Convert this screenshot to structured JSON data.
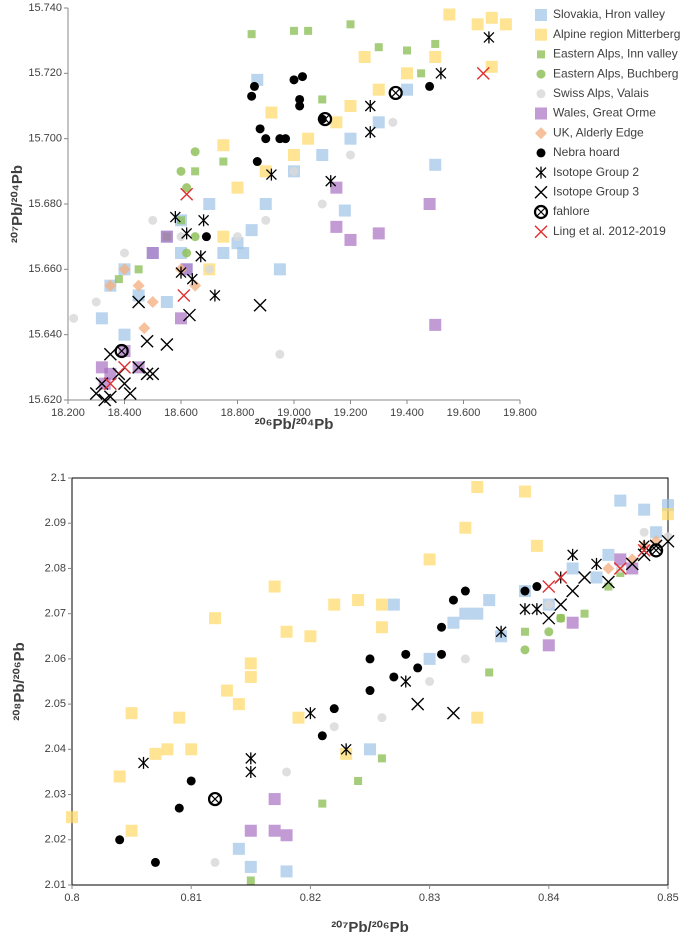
{
  "chart_data": [
    {
      "type": "scatter",
      "x_label": "²⁰⁶Pb/²⁰⁴Pb",
      "y_label": "²⁰⁷Pb/²⁰⁴Pb",
      "xlim": [
        18.2,
        19.8
      ],
      "ylim": [
        15.62,
        15.74
      ],
      "xticks": [
        {
          "value": 18.2,
          "label": "18.200"
        },
        {
          "value": 18.4,
          "label": "18.400"
        },
        {
          "value": 18.6,
          "label": "18.600"
        },
        {
          "value": 18.8,
          "label": "18.800"
        },
        {
          "value": 19.0,
          "label": "19.000"
        },
        {
          "value": 19.2,
          "label": "19.200"
        },
        {
          "value": 19.4,
          "label": "19.400"
        },
        {
          "value": 19.6,
          "label": "19.600"
        },
        {
          "value": 19.8,
          "label": "19.800"
        }
      ],
      "yticks": [
        {
          "value": 15.62,
          "label": "15.620"
        },
        {
          "value": 15.64,
          "label": "15.640"
        },
        {
          "value": 15.66,
          "label": "15.660"
        },
        {
          "value": 15.68,
          "label": "15.680"
        },
        {
          "value": 15.7,
          "label": "15.700"
        },
        {
          "value": 15.72,
          "label": "15.720"
        },
        {
          "value": 15.74,
          "label": "15.740"
        }
      ],
      "grid": false,
      "frame": false,
      "legend": "right",
      "series": [
        {
          "name": "Slovakia, Hron valley",
          "color": "#9dc3e6",
          "marker": "square",
          "x": [
            18.32,
            18.35,
            18.4,
            18.45,
            18.5,
            18.55,
            18.6,
            18.62,
            18.7,
            18.75,
            18.8,
            18.82,
            18.85,
            18.9,
            18.95,
            19.0,
            19.1,
            19.2,
            19.3,
            19.4,
            19.5,
            18.6,
            18.55,
            18.4,
            18.87,
            19.18
          ],
          "y": [
            15.645,
            15.655,
            15.66,
            15.652,
            15.665,
            15.67,
            15.675,
            15.66,
            15.68,
            15.665,
            15.668,
            15.665,
            15.672,
            15.68,
            15.66,
            15.69,
            15.695,
            15.7,
            15.705,
            15.715,
            15.692,
            15.665,
            15.65,
            15.64,
            15.718,
            15.678
          ]
        },
        {
          "name": "Alpine region Mitterberg",
          "color": "#ffd966",
          "marker": "square",
          "x": [
            18.7,
            18.75,
            18.8,
            18.9,
            19.0,
            19.05,
            19.15,
            19.2,
            19.3,
            19.4,
            19.5,
            19.55,
            19.65,
            19.7,
            19.75,
            19.7,
            19.25,
            18.75,
            18.92
          ],
          "y": [
            15.66,
            15.67,
            15.685,
            15.69,
            15.695,
            15.7,
            15.705,
            15.71,
            15.715,
            15.72,
            15.725,
            15.738,
            15.735,
            15.737,
            15.735,
            15.722,
            15.725,
            15.698,
            15.708
          ]
        },
        {
          "name": "Eastern Alps, Inn valley",
          "color": "#8fc15a",
          "marker": "square-small",
          "x": [
            18.55,
            18.6,
            18.65,
            18.75,
            18.85,
            19.0,
            19.05,
            19.2,
            19.3,
            19.4,
            19.5,
            19.45,
            19.1,
            18.45,
            18.38
          ],
          "y": [
            15.67,
            15.675,
            15.69,
            15.693,
            15.732,
            15.733,
            15.733,
            15.735,
            15.728,
            15.727,
            15.729,
            15.72,
            15.712,
            15.66,
            15.657
          ]
        },
        {
          "name": "Eastern Alps, Buchberg",
          "color": "#8fc15a",
          "marker": "dot",
          "x": [
            18.6,
            18.62,
            18.65,
            18.65,
            18.62
          ],
          "y": [
            15.69,
            15.685,
            15.696,
            15.67,
            15.665
          ]
        },
        {
          "name": "Swiss Alps, Valais",
          "color": "#d9d9d9",
          "marker": "dot",
          "x": [
            18.22,
            18.3,
            18.4,
            18.5,
            18.6,
            18.8,
            18.9,
            18.95,
            19.1,
            19.2,
            19.35,
            19.0,
            18.7
          ],
          "y": [
            15.645,
            15.65,
            15.665,
            15.675,
            15.67,
            15.67,
            15.675,
            15.634,
            15.68,
            15.695,
            15.705,
            15.69,
            15.66
          ]
        },
        {
          "name": "Wales, Great Orme",
          "color": "#a86fc2",
          "marker": "square",
          "x": [
            18.32,
            18.33,
            18.35,
            18.4,
            18.45,
            18.5,
            18.55,
            18.6,
            18.62,
            19.15,
            19.2,
            19.3,
            19.48,
            19.5,
            19.15
          ],
          "y": [
            15.63,
            15.625,
            15.628,
            15.635,
            15.63,
            15.665,
            15.67,
            15.645,
            15.66,
            15.673,
            15.669,
            15.671,
            15.68,
            15.643,
            15.685
          ]
        },
        {
          "name": "UK, Alderly Edge",
          "color": "#f4b183",
          "marker": "diamond",
          "x": [
            18.35,
            18.4,
            18.45,
            18.47,
            18.5,
            18.6,
            18.65
          ],
          "y": [
            15.655,
            15.66,
            15.655,
            15.642,
            15.65,
            15.66,
            15.655
          ]
        },
        {
          "name": "Nebra hoard",
          "color": "#000000",
          "marker": "circle",
          "x": [
            18.85,
            18.86,
            18.88,
            18.9,
            18.95,
            18.97,
            19.0,
            19.03,
            19.02,
            19.02,
            19.1,
            19.48,
            18.87,
            18.69
          ],
          "y": [
            15.713,
            15.716,
            15.703,
            15.7,
            15.7,
            15.7,
            15.718,
            15.719,
            15.712,
            15.71,
            15.706,
            15.716,
            15.693,
            15.67
          ]
        },
        {
          "name": "Isotope Group 2",
          "color": "#000000",
          "marker": "asterisk",
          "x": [
            18.58,
            18.62,
            18.68,
            18.67,
            18.6,
            18.64,
            18.72,
            18.92,
            19.13,
            19.27,
            19.27,
            19.52,
            19.69
          ],
          "y": [
            15.676,
            15.671,
            15.675,
            15.664,
            15.659,
            15.657,
            15.652,
            15.689,
            15.687,
            15.71,
            15.702,
            15.72,
            15.731
          ]
        },
        {
          "name": "Isotope Group 3",
          "color": "#000000",
          "marker": "x",
          "x": [
            18.3,
            18.32,
            18.35,
            18.38,
            18.4,
            18.42,
            18.45,
            18.48,
            18.5,
            18.55,
            18.48,
            18.45,
            18.63,
            18.88,
            18.33,
            18.35
          ],
          "y": [
            15.622,
            15.625,
            15.634,
            15.628,
            15.625,
            15.622,
            15.63,
            15.628,
            15.628,
            15.637,
            15.638,
            15.65,
            15.646,
            15.649,
            15.62,
            15.621
          ]
        },
        {
          "name": "fahlore",
          "color": "#000000",
          "marker": "circle-x",
          "x": [
            18.39,
            19.11,
            19.36
          ],
          "y": [
            15.635,
            15.706,
            15.714
          ]
        },
        {
          "name": "Ling et al. 2012-2019",
          "color": "#e03030",
          "marker": "x",
          "x": [
            18.35,
            18.4,
            18.62,
            18.61,
            19.67
          ],
          "y": [
            15.625,
            15.63,
            15.683,
            15.652,
            15.72
          ]
        }
      ]
    },
    {
      "type": "scatter",
      "x_label": "²⁰⁷Pb/²⁰⁶Pb",
      "y_label": "²⁰⁸Pb/²⁰⁶Pb",
      "xlim": [
        0.8,
        0.85
      ],
      "ylim": [
        2.01,
        2.1
      ],
      "xticks": [
        0.8,
        0.81,
        0.82,
        0.83,
        0.84,
        0.85
      ],
      "yticks": [
        2.01,
        2.02,
        2.03,
        2.04,
        2.05,
        2.06,
        2.07,
        2.08,
        2.09,
        2.1
      ],
      "grid": false,
      "frame": true,
      "series": [
        {
          "color": "#9dc3e6",
          "marker": "square",
          "x": [
            0.814,
            0.815,
            0.818,
            0.825,
            0.83,
            0.833,
            0.835,
            0.836,
            0.838,
            0.84,
            0.842,
            0.845,
            0.846,
            0.848,
            0.85,
            0.849,
            0.844,
            0.827,
            0.834,
            0.832
          ],
          "y": [
            2.018,
            2.014,
            2.013,
            2.04,
            2.06,
            2.07,
            2.073,
            2.065,
            2.075,
            2.072,
            2.08,
            2.083,
            2.095,
            2.093,
            2.094,
            2.088,
            2.078,
            2.072,
            2.07,
            2.068
          ]
        },
        {
          "color": "#ffd966",
          "marker": "square",
          "x": [
            0.8,
            0.804,
            0.805,
            0.805,
            0.807,
            0.808,
            0.809,
            0.81,
            0.812,
            0.813,
            0.814,
            0.815,
            0.815,
            0.817,
            0.818,
            0.82,
            0.822,
            0.824,
            0.826,
            0.826,
            0.83,
            0.833,
            0.834,
            0.838,
            0.834,
            0.839,
            0.85,
            0.819,
            0.823
          ],
          "y": [
            2.025,
            2.034,
            2.048,
            2.022,
            2.039,
            2.04,
            2.047,
            2.04,
            2.069,
            2.053,
            2.05,
            2.059,
            2.056,
            2.076,
            2.066,
            2.065,
            2.072,
            2.073,
            2.072,
            2.067,
            2.082,
            2.089,
            2.098,
            2.097,
            2.047,
            2.085,
            2.092,
            2.047,
            2.039
          ]
        },
        {
          "color": "#8fc15a",
          "marker": "square-small",
          "x": [
            0.815,
            0.821,
            0.824,
            0.826,
            0.835,
            0.838,
            0.841,
            0.843,
            0.845,
            0.846
          ],
          "y": [
            2.011,
            2.028,
            2.033,
            2.038,
            2.057,
            2.066,
            2.069,
            2.07,
            2.076,
            2.079
          ]
        },
        {
          "color": "#8fc15a",
          "marker": "dot",
          "x": [
            0.838,
            0.84,
            0.841
          ],
          "y": [
            2.062,
            2.066,
            2.069
          ]
        },
        {
          "color": "#d9d9d9",
          "marker": "dot",
          "x": [
            0.812,
            0.818,
            0.822,
            0.83,
            0.833,
            0.84,
            0.846,
            0.848,
            0.85,
            0.826
          ],
          "y": [
            2.015,
            2.035,
            2.045,
            2.055,
            2.06,
            2.072,
            2.08,
            2.088,
            2.087,
            2.047
          ]
        },
        {
          "color": "#a86fc2",
          "marker": "square",
          "x": [
            0.815,
            0.817,
            0.817,
            0.818,
            0.84,
            0.842,
            0.846,
            0.847
          ],
          "y": [
            2.022,
            2.029,
            2.022,
            2.021,
            2.063,
            2.068,
            2.082,
            2.08
          ]
        },
        {
          "color": "#f4b183",
          "marker": "diamond",
          "x": [
            0.845,
            0.847,
            0.848,
            0.849
          ],
          "y": [
            2.08,
            2.082,
            2.085,
            2.086
          ]
        },
        {
          "color": "#000000",
          "marker": "circle",
          "x": [
            0.804,
            0.807,
            0.809,
            0.81,
            0.821,
            0.822,
            0.825,
            0.825,
            0.827,
            0.828,
            0.829,
            0.831,
            0.831,
            0.832,
            0.833,
            0.838,
            0.839
          ],
          "y": [
            2.02,
            2.015,
            2.027,
            2.033,
            2.043,
            2.049,
            2.053,
            2.06,
            2.056,
            2.061,
            2.058,
            2.067,
            2.061,
            2.073,
            2.075,
            2.075,
            2.076
          ]
        },
        {
          "color": "#000000",
          "marker": "asterisk",
          "x": [
            0.806,
            0.815,
            0.815,
            0.82,
            0.823,
            0.828,
            0.836,
            0.838,
            0.839,
            0.841,
            0.842,
            0.844,
            0.848
          ],
          "y": [
            2.037,
            2.038,
            2.035,
            2.048,
            2.04,
            2.055,
            2.066,
            2.071,
            2.071,
            2.078,
            2.083,
            2.081,
            2.085
          ]
        },
        {
          "color": "#000000",
          "marker": "x",
          "x": [
            0.829,
            0.832,
            0.84,
            0.841,
            0.842,
            0.843,
            0.845,
            0.847,
            0.848,
            0.849,
            0.85
          ],
          "y": [
            2.05,
            2.048,
            2.069,
            2.072,
            2.075,
            2.078,
            2.077,
            2.081,
            2.083,
            2.085,
            2.086
          ]
        },
        {
          "color": "#000000",
          "marker": "circle-x",
          "x": [
            0.812,
            0.849
          ],
          "y": [
            2.029,
            2.084
          ]
        },
        {
          "color": "#e03030",
          "marker": "x",
          "x": [
            0.841,
            0.84,
            0.848,
            0.846
          ],
          "y": [
            2.078,
            2.076,
            2.084,
            2.08
          ]
        }
      ]
    }
  ]
}
